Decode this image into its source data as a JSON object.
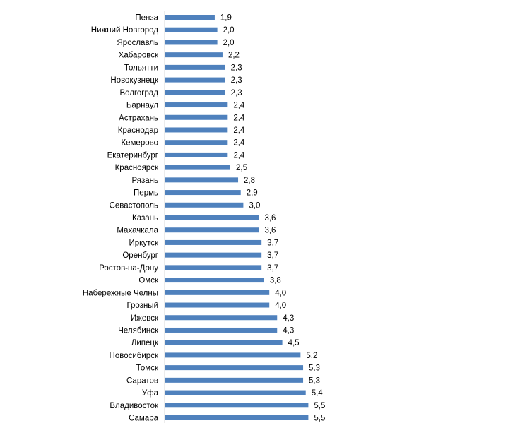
{
  "chart_data": {
    "type": "bar",
    "orientation": "horizontal",
    "title": "",
    "xlabel": "",
    "ylabel": "",
    "xlim": [
      0,
      5.5
    ],
    "grid": false,
    "bar_color": "#4F81BD",
    "categories": [
      "Пенза",
      "Нижний Новгород",
      "Ярославль",
      "Хабаровск",
      "Тольятти",
      "Новокузнецк",
      "Волгоград",
      "Барнаул",
      "Астрахань",
      "Краснодар",
      "Кемерово",
      "Екатеринбург",
      "Красноярск",
      "Рязань",
      "Пермь",
      "Севастополь",
      "Казань",
      "Махачкала",
      "Иркутск",
      "Оренбург",
      "Ростов-на-Дону",
      "Омск",
      "Набережные Челны",
      "Грозный",
      "Ижевск",
      "Челябинск",
      "Липецк",
      "Новосибирск",
      "Томск",
      "Саратов",
      "Уфа",
      "Владивосток",
      "Самара"
    ],
    "values": [
      1.9,
      2.0,
      2.0,
      2.2,
      2.3,
      2.3,
      2.3,
      2.4,
      2.4,
      2.4,
      2.4,
      2.4,
      2.5,
      2.8,
      2.9,
      3.0,
      3.6,
      3.6,
      3.7,
      3.7,
      3.7,
      3.8,
      4.0,
      4.0,
      4.3,
      4.3,
      4.5,
      5.2,
      5.3,
      5.3,
      5.4,
      5.5,
      5.5
    ],
    "value_labels": [
      "1,9",
      "2,0",
      "2,0",
      "2,2",
      "2,3",
      "2,3",
      "2,3",
      "2,4",
      "2,4",
      "2,4",
      "2,4",
      "2,4",
      "2,5",
      "2,8",
      "2,9",
      "3,0",
      "3,6",
      "3,6",
      "3,7",
      "3,7",
      "3,7",
      "3,8",
      "4,0",
      "4,0",
      "4,3",
      "4,3",
      "4,5",
      "5,2",
      "5,3",
      "5,3",
      "5,4",
      "5,5",
      "5,5"
    ]
  }
}
